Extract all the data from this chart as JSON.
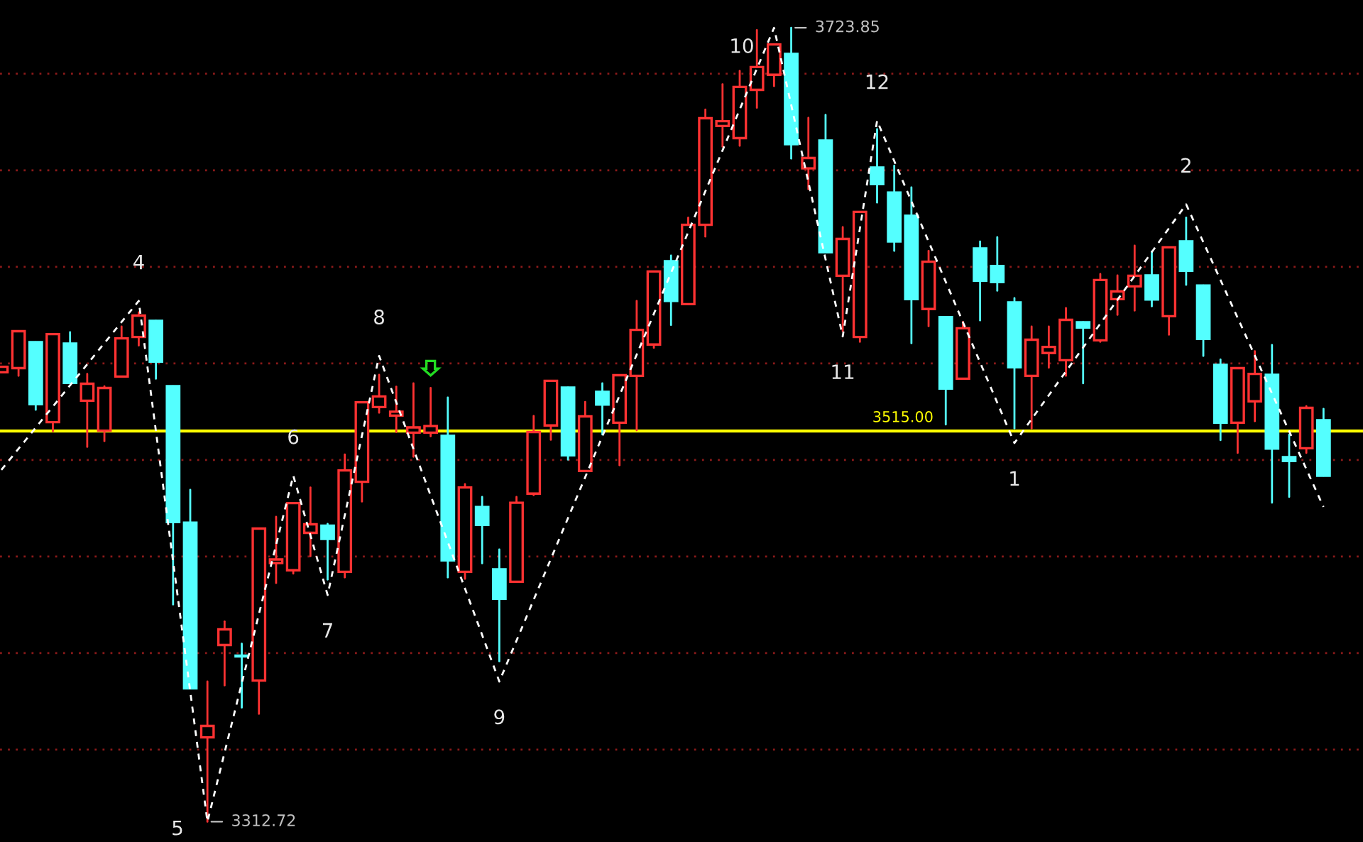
{
  "chart_data": {
    "type": "candlestick",
    "categories": [
      null,
      null,
      null,
      null,
      null,
      null,
      null,
      null,
      null,
      null,
      null,
      null,
      null,
      null,
      null,
      null,
      null,
      null,
      null,
      null,
      null,
      null,
      null,
      null,
      null,
      null,
      null,
      null,
      null,
      null,
      null,
      null,
      null,
      null,
      null,
      null,
      null,
      null,
      null,
      null,
      null,
      null,
      null,
      null,
      null,
      null,
      null,
      null,
      null,
      null,
      null,
      null,
      null,
      null,
      null,
      null,
      null,
      null,
      null,
      null,
      null,
      null,
      null,
      null,
      null,
      null,
      null,
      null,
      null,
      null,
      null,
      null,
      null,
      null,
      null,
      null,
      null,
      null
    ],
    "ylim": [
      3302.2,
      3738.2
    ],
    "yticks": [
      {
        "value": 3350,
        "label": null
      },
      {
        "value": 3400,
        "label": null
      },
      {
        "value": 3450,
        "label": null
      },
      {
        "value": 3500,
        "label": null
      },
      {
        "value": 3550,
        "label": null
      },
      {
        "value": 3600,
        "label": null
      },
      {
        "value": 3650,
        "label": null
      },
      {
        "value": 3700,
        "label": null
      }
    ],
    "grid": "y",
    "annotations": [
      "4",
      "5",
      "6",
      "7",
      "8",
      "9",
      "10",
      "11",
      "12",
      "1",
      "2",
      "3312.72",
      "3723.85"
    ],
    "ohlc": [
      [
        3545.4,
        3548.3,
        3545.4,
        3548.3
      ],
      [
        3547.6,
        3566.7,
        3543.6,
        3566.7
      ],
      [
        3561.0,
        3561.0,
        3526.0,
        3528.9
      ],
      [
        3519.6,
        3565.2,
        3514.9,
        3565.2
      ],
      [
        3560.3,
        3566.2,
        3539.9,
        3539.9
      ],
      [
        3530.7,
        3544.6,
        3506.8,
        3539.5
      ],
      [
        3515.2,
        3538.2,
        3509.8,
        3537.3
      ],
      [
        3543.2,
        3569.1,
        3543.2,
        3563.0
      ],
      [
        3563.7,
        3576.5,
        3559.3,
        3574.8
      ],
      [
        3572.1,
        3572.1,
        3542.1,
        3551.0
      ],
      [
        3538.2,
        3538.2,
        3425.2,
        3467.9
      ],
      [
        3467.6,
        3484.6,
        3381.8,
        3381.8
      ],
      [
        3356.4,
        3385.3,
        3312.72,
        3362.3
      ],
      [
        3404.2,
        3416.4,
        3383.3,
        3412.3
      ],
      [
        3398.3,
        3404.9,
        3371.8,
        3398.3
      ],
      [
        3385.8,
        3464.5,
        3368.6,
        3464.5
      ],
      [
        3446.6,
        3470.6,
        3436.3,
        3448.5
      ],
      [
        3442.9,
        3477.7,
        3441.2,
        3477.7
      ],
      [
        3462.3,
        3485.8,
        3450.2,
        3466.7
      ],
      [
        3466.0,
        3466.9,
        3438.1,
        3459.1
      ],
      [
        3442.1,
        3502.9,
        3439.2,
        3494.6
      ],
      [
        3488.7,
        3529.9,
        3478.5,
        3529.9
      ],
      [
        3527.4,
        3544.1,
        3524.5,
        3532.9
      ],
      [
        3523.0,
        3538.0,
        3514.5,
        3525.0
      ],
      [
        3514.2,
        3539.7,
        3501.7,
        3516.9
      ],
      [
        3514.2,
        3537.3,
        3512.3,
        3517.6
      ],
      [
        3512.5,
        3532.4,
        3439.2,
        3448.0
      ],
      [
        3442.1,
        3487.5,
        3438.5,
        3485.8
      ],
      [
        3475.7,
        3480.9,
        3446.5,
        3466.4
      ],
      [
        3443.4,
        3453.7,
        3395.8,
        3428.2
      ],
      [
        3437.0,
        3480.9,
        3437.0,
        3477.9
      ],
      [
        3482.6,
        3522.8,
        3481.8,
        3514.5
      ],
      [
        3517.9,
        3541.0,
        3510.5,
        3541.0
      ],
      [
        3537.5,
        3537.5,
        3500.2,
        3502.4
      ],
      [
        3494.3,
        3530.1,
        3494.3,
        3522.6
      ],
      [
        3535.3,
        3539.7,
        3513.2,
        3528.7
      ],
      [
        3519.3,
        3543.9,
        3497.3,
        3543.9
      ],
      [
        3543.6,
        3582.4,
        3515.4,
        3567.4
      ],
      [
        3559.8,
        3597.6,
        3558.1,
        3597.6
      ],
      [
        3602.9,
        3605.9,
        3569.9,
        3582.4
      ],
      [
        3580.7,
        3625.5,
        3580.7,
        3621.8
      ],
      [
        3621.8,
        3681.4,
        3615.7,
        3677.0
      ],
      [
        3673.0,
        3694.6,
        3662.3,
        3675.5
      ],
      [
        3666.7,
        3701.5,
        3662.7,
        3693.2
      ],
      [
        3691.7,
        3722.6,
        3682.4,
        3703.5
      ],
      [
        3699.5,
        3715.2,
        3693.6,
        3715.2
      ],
      [
        3710.3,
        3723.85,
        3656.1,
        3663.5
      ],
      [
        3651.0,
        3677.2,
        3640.2,
        3656.4
      ],
      [
        3665.4,
        3678.7,
        3607.6,
        3607.6
      ],
      [
        3595.4,
        3620.6,
        3566.7,
        3614.5
      ],
      [
        3563.7,
        3628.5,
        3561.2,
        3628.5
      ],
      [
        3651.5,
        3671.3,
        3633.3,
        3642.9
      ],
      [
        3638.5,
        3652.4,
        3608.3,
        3613.2
      ],
      [
        3626.5,
        3641.2,
        3560.5,
        3583.3
      ],
      [
        3578.2,
        3608.3,
        3569.3,
        3602.7
      ],
      [
        3574.0,
        3574.0,
        3518.4,
        3537.0
      ],
      [
        3542.1,
        3571.5,
        3542.1,
        3568.2
      ],
      [
        3609.6,
        3613.2,
        3572.3,
        3592.9
      ],
      [
        3600.5,
        3615.4,
        3587.7,
        3592.1
      ],
      [
        3581.6,
        3583.8,
        3516.4,
        3548.0
      ],
      [
        3543.6,
        3569.1,
        3516.4,
        3562.3
      ],
      [
        3555.4,
        3569.1,
        3547.8,
        3558.6
      ],
      [
        3551.7,
        3578.7,
        3543.6,
        3572.6
      ],
      [
        3571.3,
        3571.3,
        3539.7,
        3568.6
      ],
      [
        3562.0,
        3596.3,
        3561.2,
        3593.2
      ],
      [
        3583.3,
        3595.6,
        3575.2,
        3587.3
      ],
      [
        3589.9,
        3611.0,
        3577.4,
        3595.4
      ],
      [
        3595.6,
        3607.9,
        3579.6,
        3583.1
      ],
      [
        3574.5,
        3610.1,
        3564.9,
        3610.1
      ],
      [
        3613.2,
        3625.5,
        3590.7,
        3598.0
      ],
      [
        3590.4,
        3590.4,
        3553.9,
        3562.7
      ],
      [
        3549.3,
        3552.0,
        3510.3,
        3519.3
      ],
      [
        3519.3,
        3547.6,
        3503.7,
        3547.6
      ],
      [
        3530.4,
        3556.4,
        3520.1,
        3544.6
      ],
      [
        3544.1,
        3559.6,
        3477.9,
        3505.9
      ],
      [
        3501.5,
        3513.2,
        3480.9,
        3499.5
      ],
      [
        3506.1,
        3527.9,
        3503.7,
        3527.0
      ],
      [
        3520.6,
        3526.5,
        3491.9,
        3491.9
      ]
    ],
    "colors": [
      "#ff3232",
      "#ff3232",
      "#54ffff",
      "#ff3232",
      "#54ffff",
      "#ff3232",
      "#ff3232",
      "#ff3232",
      "#ff3232",
      "#54ffff",
      "#54ffff",
      "#54ffff",
      "#ff3232",
      "#ff3232",
      "#54ffff",
      "#ff3232",
      "#ff3232",
      "#ff3232",
      "#ff3232",
      "#54ffff",
      "#ff3232",
      "#ff3232",
      "#ff3232",
      "#ff3232",
      "#ff3232",
      "#ff3232",
      "#54ffff",
      "#ff3232",
      "#54ffff",
      "#54ffff",
      "#ff3232",
      "#ff3232",
      "#ff3232",
      "#54ffff",
      "#ff3232",
      "#54ffff",
      "#ff3232",
      "#ff3232",
      "#ff3232",
      "#54ffff",
      "#ff3232",
      "#ff3232",
      "#ff3232",
      "#ff3232",
      "#ff3232",
      "#ff3232",
      "#54ffff",
      "#ff3232",
      "#54ffff",
      "#ff3232",
      "#ff3232",
      "#54ffff",
      "#54ffff",
      "#54ffff",
      "#ff3232",
      "#54ffff",
      "#ff3232",
      "#54ffff",
      "#54ffff",
      "#54ffff",
      "#ff3232",
      "#ff3232",
      "#ff3232",
      "#54ffff",
      "#ff3232",
      "#ff3232",
      "#ff3232",
      "#54ffff",
      "#ff3232",
      "#54ffff",
      "#54ffff",
      "#54ffff",
      "#ff3232",
      "#ff3232",
      "#54ffff",
      "#54ffff",
      "#ff3232",
      "#54ffff"
    ],
    "series": [
      {
        "type": "line",
        "color": "#ffffff",
        "line_style": "dashed",
        "values": [
          3494.9,
          null,
          null,
          null,
          null,
          null,
          null,
          null,
          3582.4,
          null,
          null,
          null,
          3312.7,
          null,
          null,
          null,
          null,
          3491.9,
          null,
          3430.1,
          null,
          null,
          3553.9,
          null,
          null,
          null,
          null,
          null,
          null,
          3385.3,
          null,
          null,
          null,
          null,
          null,
          null,
          null,
          null,
          null,
          null,
          null,
          null,
          null,
          null,
          null,
          3723.8,
          null,
          null,
          null,
          3564.0,
          null,
          3675.7,
          null,
          null,
          null,
          null,
          null,
          null,
          null,
          3508.8,
          null,
          null,
          null,
          null,
          null,
          null,
          null,
          null,
          null,
          3632.4,
          null,
          null,
          null,
          null,
          null,
          null,
          null,
          3475.7
        ]
      }
    ],
    "ref_lines": [
      {
        "axis": "y",
        "value": 3515,
        "label": "3515.00",
        "color": "#ffff00"
      }
    ]
  }
}
